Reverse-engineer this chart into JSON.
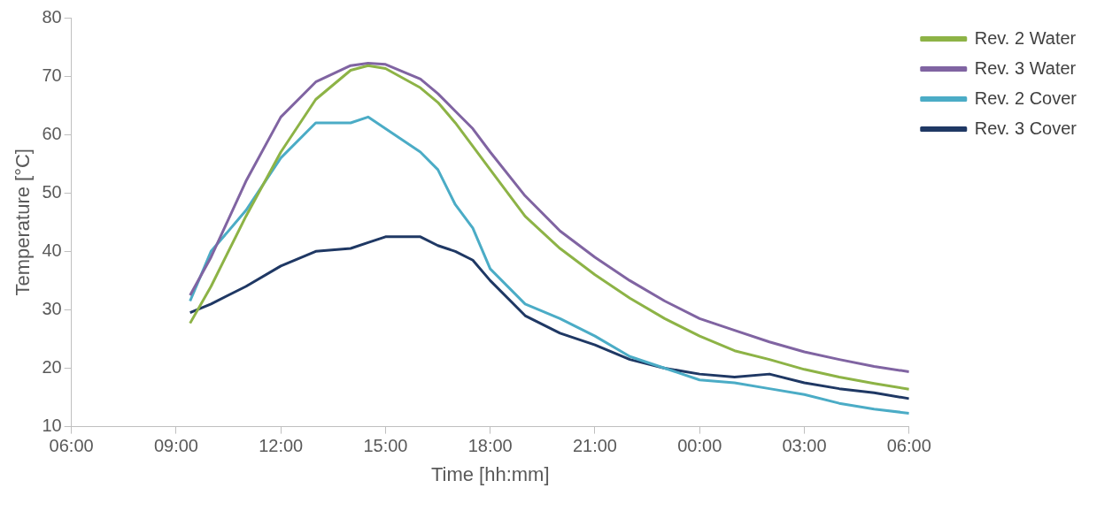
{
  "chart_data": {
    "type": "line",
    "xlabel": "Time [hh:mm]",
    "ylabel": "Temperature [°C]",
    "xlim": [
      "--01-01T06:00",
      "--01-02T06:00"
    ],
    "xticks": [
      {
        "value": "--01-01T06:00",
        "label": "06:00"
      },
      {
        "value": "--01-01T09:00",
        "label": "09:00"
      },
      {
        "value": "--01-01T12:00",
        "label": "12:00"
      },
      {
        "value": "--01-01T15:00",
        "label": "15:00"
      },
      {
        "value": "--01-01T18:00",
        "label": "18:00"
      },
      {
        "value": "--01-01T21:00",
        "label": "21:00"
      },
      {
        "value": "--01-02T00:00",
        "label": "00:00"
      },
      {
        "value": "--01-02T03:00",
        "label": "03:00"
      },
      {
        "value": "--01-02T06:00",
        "label": "06:00"
      }
    ],
    "ylim": [
      10,
      80
    ],
    "yticks": [
      10,
      20,
      30,
      40,
      50,
      60,
      70,
      80
    ],
    "grid": false,
    "legend": "top right",
    "marker": "none",
    "line_style": "solid",
    "x": [
      "--01-01T09:24",
      "--01-01T10:00",
      "--01-01T11:00",
      "--01-01T12:00",
      "--01-01T13:00",
      "--01-01T14:00",
      "--01-01T14:30",
      "--01-01T15:00",
      "--01-01T16:00",
      "--01-01T16:30",
      "--01-01T17:00",
      "--01-01T17:30",
      "--01-01T18:00",
      "--01-01T19:00",
      "--01-01T20:00",
      "--01-01T21:00",
      "--01-01T22:00",
      "--01-01T23:00",
      "--01-02T00:00",
      "--01-02T01:00",
      "--01-02T02:00",
      "--01-02T03:00",
      "--01-02T04:00",
      "--01-02T05:00",
      "--01-02T06:00"
    ],
    "series": [
      {
        "name": "Rev. 2 Water",
        "color": "#8db346",
        "values": [
          27.7,
          34,
          46,
          57,
          66,
          71,
          71.8,
          71.3,
          68,
          65.5,
          62,
          58,
          54,
          46,
          40.5,
          36,
          32,
          28.5,
          25.5,
          23,
          21.5,
          19.8,
          18.5,
          17.4,
          16.4
        ]
      },
      {
        "name": "Rev. 3 Water",
        "color": "#8064a2",
        "values": [
          32.5,
          39,
          52,
          63,
          69,
          71.8,
          72.2,
          72,
          69.5,
          67,
          64,
          61,
          57,
          49.5,
          43.5,
          39,
          35,
          31.5,
          28.5,
          26.5,
          24.5,
          22.8,
          21.5,
          20.3,
          19.4
        ]
      },
      {
        "name": "Rev. 2 Cover",
        "color": "#4bacc6",
        "values": [
          31.5,
          40,
          47,
          56,
          62,
          62,
          63,
          61,
          57,
          54,
          48,
          44,
          37,
          31,
          28.5,
          25.5,
          22,
          20,
          18,
          17.5,
          16.5,
          15.5,
          14,
          13,
          12.3
        ]
      },
      {
        "name": "Rev. 3 Cover",
        "color": "#1f3864",
        "values": [
          29.5,
          31,
          34,
          37.5,
          40,
          40.5,
          41.5,
          42.5,
          42.5,
          41,
          40,
          38.5,
          35,
          29,
          26,
          24,
          21.5,
          20,
          19,
          18.5,
          19,
          17.5,
          16.5,
          15.8,
          14.8
        ]
      }
    ]
  }
}
